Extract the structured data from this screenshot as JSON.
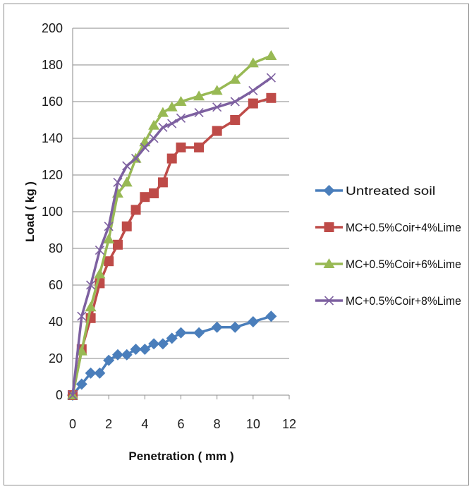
{
  "chart_data": {
    "type": "line",
    "title": "",
    "xlabel": "Penetration ( mm )",
    "ylabel": "Load ( kg )",
    "xlim": [
      0,
      12
    ],
    "ylim": [
      0,
      200
    ],
    "xticks": [
      "0",
      "2",
      "4",
      "6",
      "8",
      "10",
      "12"
    ],
    "yticks": [
      "0",
      "20",
      "40",
      "60",
      "80",
      "100",
      "120",
      "140",
      "160",
      "180",
      "200"
    ],
    "grid": "horizontal",
    "legend_position": "right",
    "series": [
      {
        "name": "Untreated soil",
        "color": "#4a7ebb",
        "marker": "diamond",
        "points": [
          [
            0,
            0
          ],
          [
            0.5,
            6
          ],
          [
            1,
            12
          ],
          [
            1.5,
            12
          ],
          [
            2,
            19
          ],
          [
            2.5,
            22
          ],
          [
            3,
            22
          ],
          [
            3.5,
            25
          ],
          [
            4,
            25
          ],
          [
            4.5,
            28
          ],
          [
            5,
            28
          ],
          [
            5.5,
            31
          ],
          [
            6,
            34
          ],
          [
            7,
            34
          ],
          [
            8,
            37
          ],
          [
            9,
            37
          ],
          [
            10,
            40
          ],
          [
            11,
            43
          ]
        ]
      },
      {
        "name": "MC+0.5%Coir+4%Lime",
        "color": "#be4b48",
        "marker": "square",
        "points": [
          [
            0,
            0
          ],
          [
            0.5,
            25
          ],
          [
            1,
            42
          ],
          [
            1.5,
            61
          ],
          [
            2,
            73
          ],
          [
            2.5,
            82
          ],
          [
            3,
            92
          ],
          [
            3.5,
            101
          ],
          [
            4,
            108
          ],
          [
            4.5,
            110
          ],
          [
            5,
            116
          ],
          [
            5.5,
            129
          ],
          [
            6,
            135
          ],
          [
            7,
            135
          ],
          [
            8,
            144
          ],
          [
            9,
            150
          ],
          [
            10,
            159
          ],
          [
            11,
            162
          ]
        ]
      },
      {
        "name": "MC+0.5%Coir+6%Lime",
        "color": "#98b954",
        "marker": "triangle",
        "points": [
          [
            0,
            0
          ],
          [
            0.5,
            24
          ],
          [
            1,
            48
          ],
          [
            1.5,
            66
          ],
          [
            2,
            85
          ],
          [
            2.5,
            110
          ],
          [
            3,
            116
          ],
          [
            3.5,
            129
          ],
          [
            4,
            138
          ],
          [
            4.5,
            147
          ],
          [
            5,
            154
          ],
          [
            5.5,
            157
          ],
          [
            6,
            160
          ],
          [
            7,
            163
          ],
          [
            8,
            166
          ],
          [
            9,
            172
          ],
          [
            10,
            181
          ],
          [
            11,
            185
          ]
        ]
      },
      {
        "name": "MC+0.5%Coir+8%Lime",
        "color": "#7d60a0",
        "marker": "x",
        "points": [
          [
            0,
            0
          ],
          [
            0.5,
            43
          ],
          [
            1,
            60
          ],
          [
            1.5,
            79
          ],
          [
            2,
            92
          ],
          [
            2.5,
            116
          ],
          [
            3,
            125
          ],
          [
            3.5,
            129
          ],
          [
            4,
            135
          ],
          [
            4.5,
            140
          ],
          [
            5,
            146
          ],
          [
            5.5,
            148
          ],
          [
            6,
            151
          ],
          [
            7,
            154
          ],
          [
            8,
            157
          ],
          [
            9,
            160
          ],
          [
            10,
            166
          ],
          [
            11,
            173
          ]
        ]
      }
    ]
  }
}
